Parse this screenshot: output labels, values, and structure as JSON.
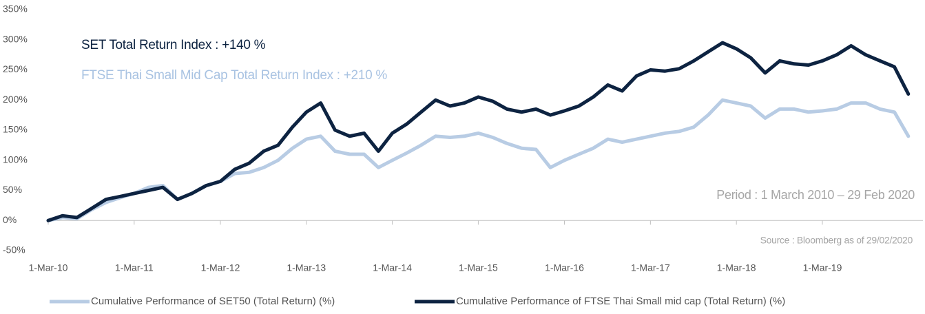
{
  "chart_data": {
    "type": "line",
    "annotations": [
      {
        "text": "SET Total Return Index : +140 %",
        "color": "#0d2341"
      },
      {
        "text": "FTSE Thai Small Mid Cap Total Return Index  : +210 %",
        "color": "#a9c3e2"
      },
      {
        "text": "Period : 1 March 2010 – 29 Feb 2020",
        "color": "#a6a6a6"
      },
      {
        "text": "Source : Bloomberg as of 29/02/2020",
        "color": "#a6a6a6"
      }
    ],
    "x": [
      "2010-03-01",
      "2010-05-01",
      "2010-07-01",
      "2010-09-01",
      "2010-11-01",
      "2011-01-01",
      "2011-03-01",
      "2011-05-01",
      "2011-07-01",
      "2011-09-01",
      "2011-11-01",
      "2012-01-01",
      "2012-03-01",
      "2012-05-01",
      "2012-07-01",
      "2012-09-01",
      "2012-11-01",
      "2013-01-01",
      "2013-03-01",
      "2013-05-01",
      "2013-07-01",
      "2013-09-01",
      "2013-11-01",
      "2014-01-01",
      "2014-03-01",
      "2014-05-01",
      "2014-07-01",
      "2014-09-01",
      "2014-11-01",
      "2015-01-01",
      "2015-03-01",
      "2015-05-01",
      "2015-07-01",
      "2015-09-01",
      "2015-11-01",
      "2016-01-01",
      "2016-03-01",
      "2016-05-01",
      "2016-07-01",
      "2016-09-01",
      "2016-11-01",
      "2017-01-01",
      "2017-03-01",
      "2017-05-01",
      "2017-07-01",
      "2017-09-01",
      "2017-11-01",
      "2018-01-01",
      "2018-03-01",
      "2018-05-01",
      "2018-07-01",
      "2018-09-01",
      "2018-11-01",
      "2019-01-01",
      "2019-03-01",
      "2019-05-01",
      "2019-07-01",
      "2019-09-01",
      "2019-11-01",
      "2020-01-01",
      "2020-02-29"
    ],
    "series": [
      {
        "name": "Cumulative Performance of SET50  (Total Return) (%)",
        "color": "#b8cce4",
        "values": [
          0,
          5,
          3,
          18,
          30,
          38,
          45,
          55,
          58,
          35,
          45,
          58,
          65,
          78,
          80,
          88,
          100,
          120,
          135,
          140,
          115,
          110,
          110,
          88,
          100,
          112,
          125,
          140,
          138,
          140,
          145,
          138,
          128,
          120,
          118,
          88,
          100,
          110,
          120,
          135,
          130,
          135,
          140,
          145,
          148,
          155,
          175,
          200,
          195,
          190,
          170,
          185,
          185,
          180,
          182,
          185,
          195,
          195,
          185,
          180,
          140
        ]
      },
      {
        "name": "Cumulative Performance of FTSE Thai Small mid cap (Total Return) (%)",
        "color": "#0d2341",
        "values": [
          0,
          8,
          5,
          20,
          35,
          40,
          45,
          50,
          55,
          35,
          45,
          58,
          65,
          85,
          95,
          115,
          125,
          155,
          180,
          195,
          150,
          140,
          145,
          115,
          145,
          160,
          180,
          200,
          190,
          195,
          205,
          198,
          185,
          180,
          185,
          175,
          182,
          190,
          205,
          225,
          215,
          240,
          250,
          248,
          252,
          265,
          280,
          295,
          285,
          270,
          245,
          265,
          260,
          258,
          265,
          275,
          290,
          275,
          265,
          255,
          210
        ]
      }
    ],
    "xlim": [
      "2010-03-01",
      "2020-05-01"
    ],
    "xticks": [
      {
        "value": "2010-03-01",
        "label": "1-Mar-10"
      },
      {
        "value": "2011-03-01",
        "label": "1-Mar-11"
      },
      {
        "value": "2012-03-01",
        "label": "1-Mar-12"
      },
      {
        "value": "2013-03-01",
        "label": "1-Mar-13"
      },
      {
        "value": "2014-03-01",
        "label": "1-Mar-14"
      },
      {
        "value": "2015-03-01",
        "label": "1-Mar-15"
      },
      {
        "value": "2016-03-01",
        "label": "1-Mar-16"
      },
      {
        "value": "2017-03-01",
        "label": "1-Mar-17"
      },
      {
        "value": "2018-03-01",
        "label": "1-Mar-18"
      },
      {
        "value": "2019-03-01",
        "label": "1-Mar-19"
      }
    ],
    "ylim": [
      -50,
      350
    ],
    "yticks": [
      {
        "value": -50,
        "label": "-50%"
      },
      {
        "value": 0,
        "label": "0%"
      },
      {
        "value": 50,
        "label": "50%"
      },
      {
        "value": 100,
        "label": "100%"
      },
      {
        "value": 150,
        "label": "150%"
      },
      {
        "value": 200,
        "label": "200%"
      },
      {
        "value": 250,
        "label": "250%"
      },
      {
        "value": 300,
        "label": "300%"
      },
      {
        "value": 350,
        "label": "350%"
      }
    ],
    "grid": false
  }
}
